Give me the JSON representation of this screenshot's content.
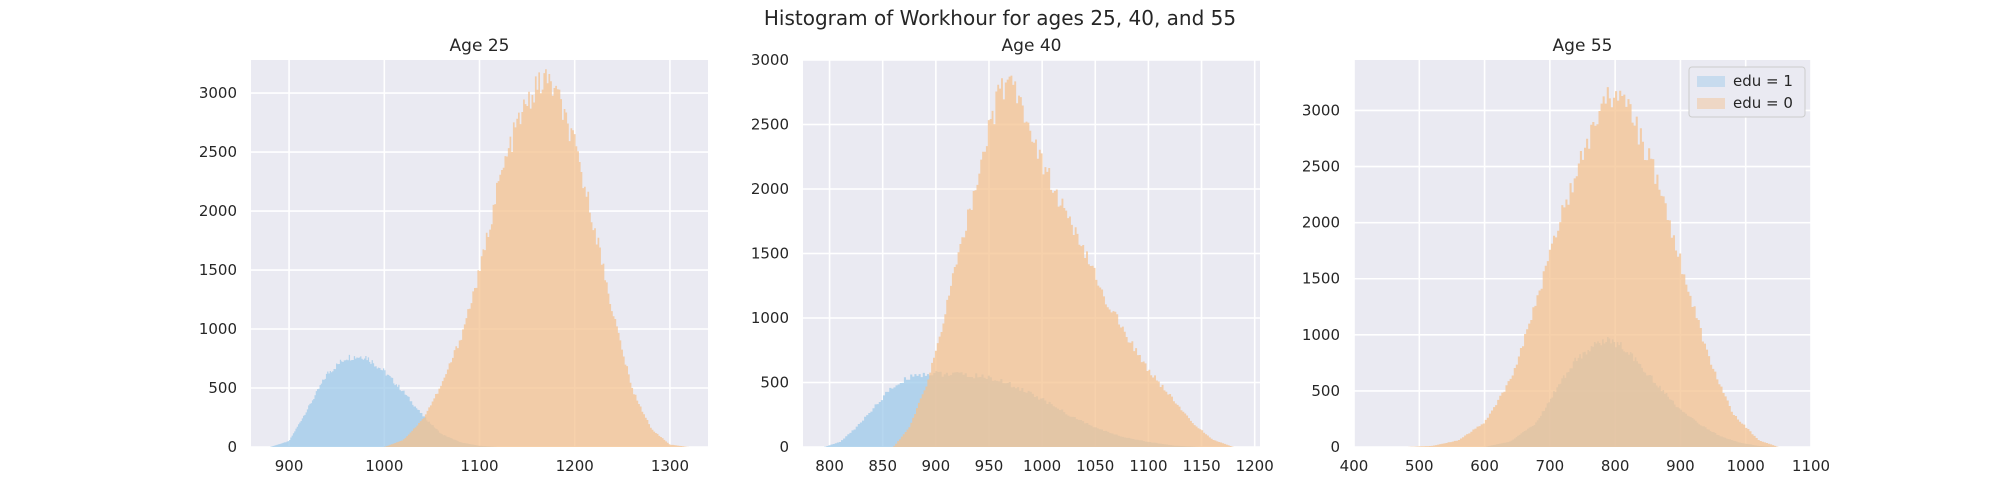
{
  "figure": {
    "title": "Histogram of Workhour for ages 25, 40, and 55"
  },
  "chart_data": [
    {
      "type": "histogram",
      "title": "Age 25",
      "xlim": [
        860,
        1340
      ],
      "ylim": [
        0,
        3280
      ],
      "xticks": [
        900,
        1000,
        1100,
        1200,
        1300
      ],
      "yticks": [
        0,
        500,
        1000,
        1500,
        2000,
        2500,
        3000
      ],
      "grid": true,
      "series": [
        {
          "name": "edu = 1",
          "color": "#9ecae9",
          "x": [
            880,
            900,
            920,
            940,
            960,
            980,
            1000,
            1020,
            1040,
            1060,
            1080,
            1100,
            1120
          ],
          "y": [
            0,
            50,
            330,
            620,
            760,
            770,
            640,
            470,
            270,
            110,
            40,
            10,
            0
          ]
        },
        {
          "name": "edu = 0",
          "color": "#f4c28f",
          "x": [
            1000,
            1020,
            1040,
            1060,
            1080,
            1100,
            1120,
            1140,
            1160,
            1170,
            1180,
            1200,
            1220,
            1240,
            1260,
            1280,
            1300,
            1320
          ],
          "y": [
            0,
            60,
            230,
            520,
            920,
            1480,
            2230,
            2750,
            3050,
            3120,
            3020,
            2550,
            1900,
            1150,
            500,
            160,
            20,
            0
          ]
        }
      ]
    },
    {
      "type": "histogram",
      "title": "Age 40",
      "xlim": [
        775,
        1205
      ],
      "ylim": [
        0,
        3000
      ],
      "xticks": [
        800,
        850,
        900,
        950,
        1000,
        1050,
        1100,
        1150,
        1200
      ],
      "yticks": [
        0,
        500,
        1000,
        1500,
        2000,
        2500,
        3000
      ],
      "grid": true,
      "series": [
        {
          "name": "edu = 1",
          "color": "#9ecae9",
          "x": [
            795,
            810,
            825,
            840,
            855,
            870,
            880,
            900,
            925,
            950,
            975,
            1000,
            1025,
            1050,
            1075,
            1100,
            1125,
            1150
          ],
          "y": [
            0,
            40,
            150,
            290,
            430,
            520,
            560,
            570,
            560,
            540,
            470,
            370,
            250,
            150,
            80,
            40,
            10,
            0
          ]
        },
        {
          "name": "edu = 0",
          "color": "#f4c28f",
          "x": [
            860,
            875,
            890,
            905,
            920,
            935,
            950,
            960,
            970,
            980,
            1000,
            1020,
            1040,
            1060,
            1080,
            1100,
            1120,
            1140,
            1160,
            1180
          ],
          "y": [
            0,
            150,
            450,
            900,
            1450,
            1950,
            2450,
            2750,
            2850,
            2700,
            2200,
            1850,
            1500,
            1150,
            850,
            600,
            400,
            200,
            60,
            0
          ]
        }
      ]
    },
    {
      "type": "histogram",
      "title": "Age 55",
      "xlim": [
        400,
        1100
      ],
      "ylim": [
        0,
        3450
      ],
      "xticks": [
        400,
        500,
        600,
        700,
        800,
        900,
        1000,
        1100
      ],
      "yticks": [
        0,
        500,
        1000,
        1500,
        2000,
        2500,
        3000
      ],
      "grid": true,
      "legend": "top-right",
      "series": [
        {
          "name": "edu = 1",
          "color": "#9ecae9",
          "x": [
            600,
            640,
            680,
            710,
            740,
            770,
            790,
            810,
            840,
            870,
            900,
            930,
            960,
            990,
            1020,
            1050
          ],
          "y": [
            0,
            50,
            220,
            520,
            780,
            920,
            950,
            900,
            720,
            520,
            330,
            200,
            100,
            40,
            10,
            0
          ]
        },
        {
          "name": "edu = 0",
          "color": "#f4c28f",
          "x": [
            480,
            520,
            560,
            600,
            640,
            680,
            720,
            760,
            790,
            800,
            820,
            860,
            900,
            940,
            980,
            1020,
            1050
          ],
          "y": [
            0,
            10,
            60,
            220,
            600,
            1300,
            2100,
            2750,
            3100,
            3200,
            3050,
            2450,
            1650,
            850,
            300,
            60,
            0
          ]
        }
      ]
    }
  ]
}
